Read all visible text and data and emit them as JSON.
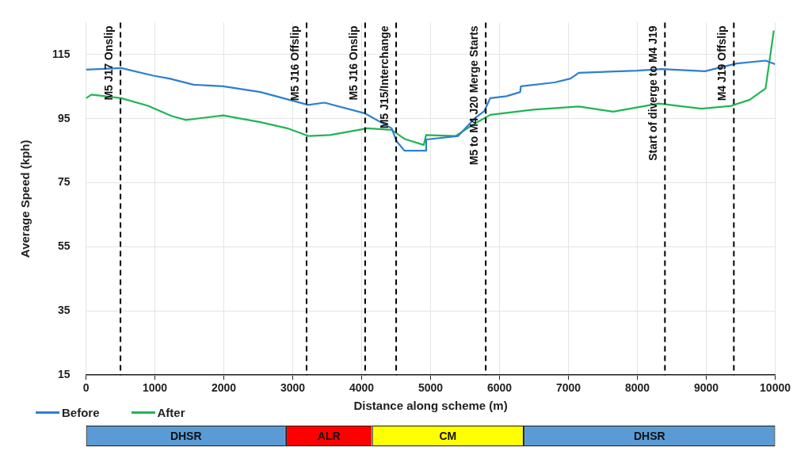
{
  "chart_data": [
    {
      "type": "line",
      "xlabel": "Distance along scheme (m)",
      "ylabel": "Average Speed (kph)",
      "xlim": [
        0,
        10000
      ],
      "xticks": [
        0,
        1000,
        2000,
        3000,
        4000,
        5000,
        6000,
        7000,
        8000,
        9000,
        10000
      ],
      "ylim": [
        15,
        125
      ],
      "yticks": [
        15,
        35,
        55,
        75,
        95,
        115
      ],
      "grid": true,
      "legend": "bottom left",
      "marker": "none",
      "line_style": "solid",
      "series": [
        {
          "name": "Before",
          "color": "#2e7fd1",
          "x": [
            0,
            512,
            978,
            1210,
            1560,
            1990,
            2530,
            3225,
            3460,
            4040,
            4435,
            4505,
            4620,
            4935,
            4936,
            5400,
            5635,
            5780,
            5865,
            6100,
            6300,
            6310,
            6800,
            7030,
            7150,
            8000,
            8350,
            8980,
            9440,
            9860,
            10000
          ],
          "values": [
            110.3,
            110.8,
            108.4,
            107.5,
            105.6,
            105.1,
            103.3,
            99.3,
            100,
            96.7,
            92,
            88,
            85,
            85,
            88.5,
            89.6,
            95,
            97.4,
            101.4,
            102,
            103.3,
            105.1,
            106.3,
            107.5,
            109.3,
            110,
            110.5,
            109.8,
            112.2,
            113.1,
            112
          ]
        },
        {
          "name": "After",
          "color": "#22b455",
          "x": [
            0,
            80,
            512,
            900,
            1245,
            1450,
            1990,
            2530,
            2920,
            3225,
            3540,
            4085,
            4435,
            4620,
            4900,
            4935,
            5365,
            5635,
            5865,
            6485,
            7150,
            7650,
            8310,
            8930,
            9360,
            9630,
            9860,
            9980
          ],
          "values": [
            101.4,
            102.5,
            101.4,
            99,
            95.8,
            94.6,
            96,
            93.9,
            92,
            89.6,
            89.9,
            92,
            91.5,
            88.7,
            86.8,
            89.9,
            89.6,
            93.4,
            96.2,
            97.8,
            98.8,
            97.2,
            99.7,
            98.1,
            99,
            100.9,
            104.4,
            122.5
          ]
        }
      ],
      "ref_lines": [
        {
          "axis": "x",
          "value": 500,
          "label": "M5 J17 Onslip",
          "line_style": "dashed",
          "color": "#000000"
        },
        {
          "axis": "x",
          "value": 3200,
          "label": "M5 J16 Offslip",
          "line_style": "dashed",
          "color": "#000000"
        },
        {
          "axis": "x",
          "value": 4050,
          "label": "M5 J16 Onslip",
          "line_style": "dashed",
          "color": "#000000"
        },
        {
          "axis": "x",
          "value": 4500,
          "label": "M5 J15/Interchange",
          "line_style": "dashed",
          "color": "#000000"
        },
        {
          "axis": "x",
          "value": 5800,
          "label": "M5 to M4 J20 Merge Starts",
          "line_style": "dashed",
          "color": "#000000"
        },
        {
          "axis": "x",
          "value": 8400,
          "label": "Start of diverge to M4 J19",
          "line_style": "dashed",
          "color": "#000000"
        },
        {
          "axis": "x",
          "value": 9400,
          "label": "M4 J19 Offslip",
          "line_style": "dashed",
          "color": "#000000"
        }
      ]
    },
    {
      "type": "bar",
      "orientation": "horizontal",
      "stacked": true,
      "categories": [
        null
      ],
      "xlim": [
        0,
        10000
      ],
      "tick_labels": false,
      "series": [
        {
          "name": "DHSR",
          "color": "#5b9bd5",
          "values": [
            2900
          ]
        },
        {
          "name": "ALR",
          "color": "#ff0000",
          "values": [
            1250
          ]
        },
        {
          "name": "CM",
          "color": "#ffff00",
          "values": [
            2200
          ]
        },
        {
          "name": "DHSR",
          "color": "#5b9bd5",
          "values": [
            3650
          ]
        }
      ]
    }
  ]
}
